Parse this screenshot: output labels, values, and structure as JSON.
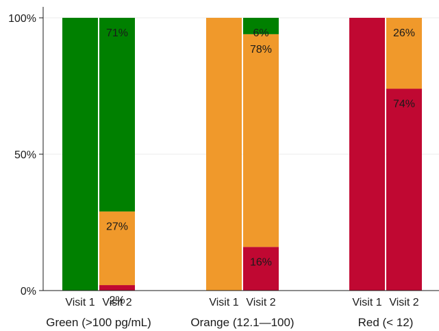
{
  "chart_data": {
    "type": "bar",
    "stacked": true,
    "percent": true,
    "ylim": [
      0,
      100
    ],
    "yticks": [
      "0%",
      "50%",
      "100%"
    ],
    "grid": true,
    "groups": [
      {
        "label": "Green (>100 pg/mL)",
        "bars": [
          {
            "label": "Visit 1",
            "segments": [
              {
                "category": "green",
                "value": 100,
                "label": ""
              }
            ]
          },
          {
            "label": "Visit 2",
            "segments": [
              {
                "category": "red",
                "value": 2,
                "label": "2%"
              },
              {
                "category": "orange",
                "value": 27,
                "label": "27%"
              },
              {
                "category": "green",
                "value": 71,
                "label": "71%"
              }
            ]
          }
        ]
      },
      {
        "label": "Orange (12.1—100)",
        "bars": [
          {
            "label": "Visit 1",
            "segments": [
              {
                "category": "orange",
                "value": 100,
                "label": ""
              }
            ]
          },
          {
            "label": "Visit 2",
            "segments": [
              {
                "category": "red",
                "value": 16,
                "label": "16%"
              },
              {
                "category": "orange",
                "value": 78,
                "label": "78%"
              },
              {
                "category": "green",
                "value": 6,
                "label": "6%"
              }
            ]
          }
        ]
      },
      {
        "label": "Red (< 12)",
        "bars": [
          {
            "label": "Visit 1",
            "segments": [
              {
                "category": "red",
                "value": 100,
                "label": ""
              }
            ]
          },
          {
            "label": "Visit 2",
            "segments": [
              {
                "category": "red",
                "value": 74,
                "label": "74%"
              },
              {
                "category": "orange",
                "value": 26,
                "label": "26%"
              }
            ]
          }
        ]
      }
    ],
    "colors": {
      "green": "#008000",
      "orange": "#F0992B",
      "red": "#C00832"
    }
  }
}
